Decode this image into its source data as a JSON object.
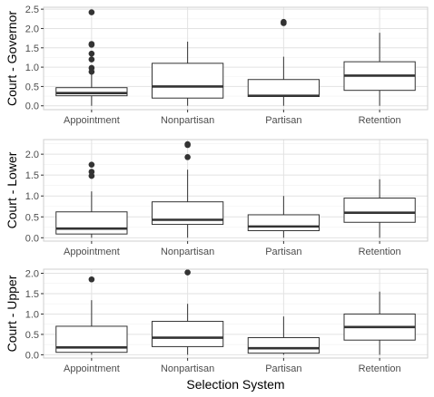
{
  "chart_data": {
    "type": "boxplot",
    "xlabel": "Selection System",
    "categories": [
      "Appointment",
      "Nonpartisan",
      "Partisan",
      "Retention"
    ],
    "grid": true,
    "panels": [
      {
        "ylabel": "Court - Governor",
        "ylim": [
          -0.1,
          2.55
        ],
        "yticks": [
          0.0,
          0.5,
          1.0,
          1.5,
          2.0,
          2.5
        ],
        "ytick_labels": [
          "0.0",
          "0.5",
          "1.0",
          "1.5",
          "2.0",
          "2.5"
        ],
        "boxes": [
          {
            "category": "Appointment",
            "min": 0.0,
            "q1": 0.26,
            "median": 0.33,
            "q3": 0.47,
            "max": 0.82,
            "outliers": [
              0.88,
              0.98,
              1.2,
              1.35,
              1.58,
              1.6,
              2.42
            ]
          },
          {
            "category": "Nonpartisan",
            "min": 0.0,
            "q1": 0.2,
            "median": 0.5,
            "q3": 1.1,
            "max": 1.66,
            "outliers": []
          },
          {
            "category": "Partisan",
            "min": 0.0,
            "q1": 0.24,
            "median": 0.26,
            "q3": 0.68,
            "max": 1.27,
            "outliers": [
              2.14,
              2.17
            ]
          },
          {
            "category": "Retention",
            "min": 0.0,
            "q1": 0.4,
            "median": 0.78,
            "q3": 1.14,
            "max": 1.89,
            "outliers": []
          }
        ]
      },
      {
        "ylabel": "Court - Lower",
        "ylim": [
          -0.08,
          2.35
        ],
        "yticks": [
          0.0,
          0.5,
          1.0,
          1.5,
          2.0
        ],
        "ytick_labels": [
          "0.0",
          "0.5",
          "1.0",
          "1.5",
          "2.0"
        ],
        "boxes": [
          {
            "category": "Appointment",
            "min": 0.0,
            "q1": 0.09,
            "median": 0.22,
            "q3": 0.62,
            "max": 1.11,
            "outliers": [
              1.48,
              1.58,
              1.75
            ]
          },
          {
            "category": "Nonpartisan",
            "min": 0.0,
            "q1": 0.32,
            "median": 0.43,
            "q3": 0.86,
            "max": 1.63,
            "outliers": [
              1.93,
              2.22,
              2.24
            ]
          },
          {
            "category": "Partisan",
            "min": 0.0,
            "q1": 0.17,
            "median": 0.27,
            "q3": 0.55,
            "max": 1.0,
            "outliers": []
          },
          {
            "category": "Retention",
            "min": 0.0,
            "q1": 0.37,
            "median": 0.6,
            "q3": 0.95,
            "max": 1.4,
            "outliers": []
          }
        ]
      },
      {
        "ylabel": "Court - Upper",
        "ylim": [
          -0.08,
          2.1
        ],
        "yticks": [
          0.0,
          0.5,
          1.0,
          1.5,
          2.0
        ],
        "ytick_labels": [
          "0.0",
          "0.5",
          "1.0",
          "1.5",
          "2.0"
        ],
        "boxes": [
          {
            "category": "Appointment",
            "min": 0.0,
            "q1": 0.06,
            "median": 0.18,
            "q3": 0.7,
            "max": 1.34,
            "outliers": [
              1.85
            ]
          },
          {
            "category": "Nonpartisan",
            "min": 0.0,
            "q1": 0.2,
            "median": 0.42,
            "q3": 0.82,
            "max": 1.25,
            "outliers": [
              2.02
            ]
          },
          {
            "category": "Partisan",
            "min": 0.0,
            "q1": 0.04,
            "median": 0.16,
            "q3": 0.42,
            "max": 0.94,
            "outliers": []
          },
          {
            "category": "Retention",
            "min": 0.0,
            "q1": 0.36,
            "median": 0.68,
            "q3": 1.0,
            "max": 1.55,
            "outliers": []
          }
        ]
      }
    ]
  }
}
